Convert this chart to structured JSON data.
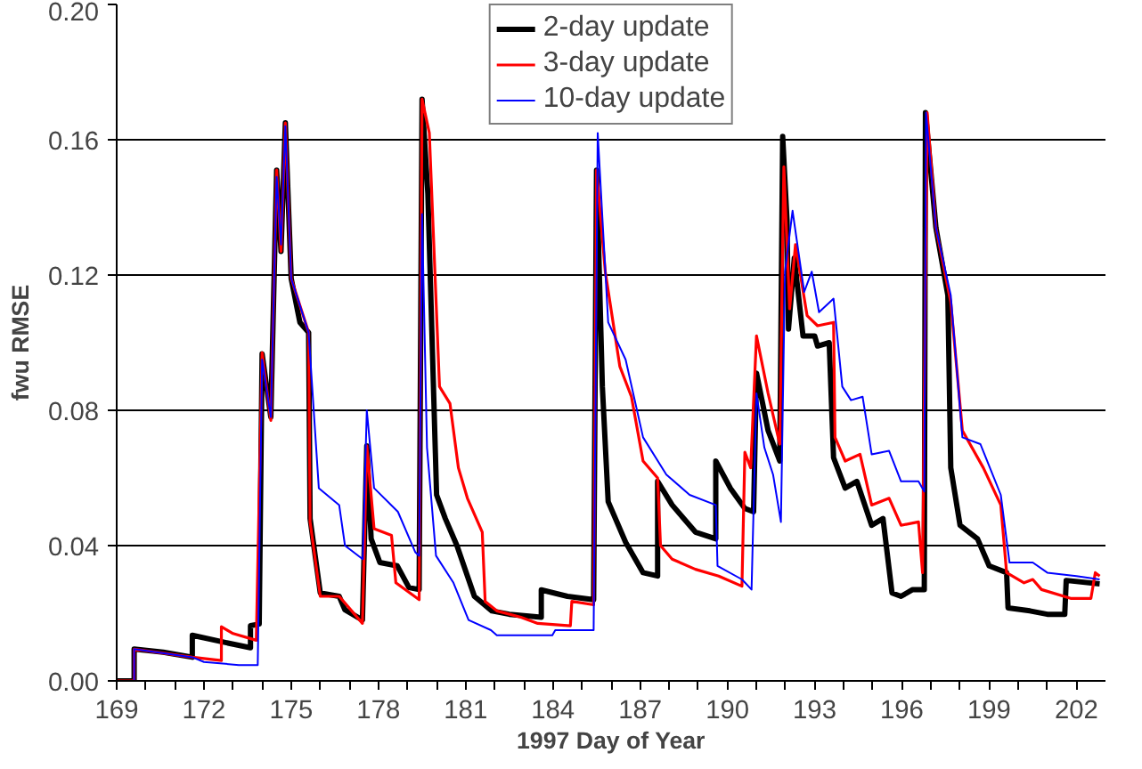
{
  "chart_data": {
    "type": "line",
    "xlabel": "1997 Day of Year",
    "ylabel": "fwu RMSE",
    "xlim": [
      169,
      203
    ],
    "ylim": [
      0,
      0.2
    ],
    "xticks": [
      169,
      {
        "value": 170,
        "label": null
      },
      {
        "value": 171,
        "label": null
      },
      172,
      {
        "value": 173,
        "label": null
      },
      {
        "value": 174,
        "label": null
      },
      175,
      {
        "value": 176,
        "label": null
      },
      {
        "value": 177,
        "label": null
      },
      178,
      {
        "value": 179,
        "label": null
      },
      {
        "value": 180,
        "label": null
      },
      181,
      {
        "value": 182,
        "label": null
      },
      {
        "value": 183,
        "label": null
      },
      184,
      {
        "value": 185,
        "label": null
      },
      {
        "value": 186,
        "label": null
      },
      187,
      {
        "value": 188,
        "label": null
      },
      {
        "value": 189,
        "label": null
      },
      190,
      {
        "value": 191,
        "label": null
      },
      {
        "value": 192,
        "label": null
      },
      193,
      {
        "value": 194,
        "label": null
      },
      {
        "value": 195,
        "label": null
      },
      196,
      {
        "value": 197,
        "label": null
      },
      {
        "value": 198,
        "label": null
      },
      199,
      {
        "value": 200,
        "label": null
      },
      {
        "value": 201,
        "label": null
      },
      202
    ],
    "yticks": [
      {
        "value": 0,
        "label": "0.00"
      },
      {
        "value": 0.04,
        "label": "0.04"
      },
      {
        "value": 0.08,
        "label": "0.08"
      },
      {
        "value": 0.12,
        "label": "0.12"
      },
      {
        "value": 0.16,
        "label": "0.16"
      },
      {
        "value": 0.2,
        "label": "0.20"
      }
    ],
    "grid": "y",
    "legend": "top",
    "line_style": "solid",
    "marker": "none",
    "series": [
      {
        "name": "2-day update",
        "color": "#000000",
        "x": [
          169.0,
          169.6,
          169.6,
          170.6,
          171.6,
          171.6,
          172.6,
          173.6,
          173.6,
          173.9,
          174.0,
          174.3,
          174.5,
          174.65,
          174.8,
          175.0,
          175.3,
          175.6,
          175.65,
          176.0,
          176.65,
          176.85,
          177.45,
          177.6,
          177.75,
          178.05,
          178.65,
          179.05,
          179.4,
          179.5,
          179.7,
          180.0,
          180.3,
          180.7,
          181.1,
          181.3,
          181.9,
          182.5,
          183.6,
          183.6,
          184.5,
          185.4,
          185.5,
          185.7,
          185.9,
          186.5,
          187.1,
          187.6,
          187.6,
          188.1,
          188.9,
          189.6,
          189.6,
          190.1,
          190.6,
          190.9,
          191.0,
          191.4,
          191.8,
          191.9,
          192.05,
          192.1,
          192.3,
          192.6,
          193.0,
          193.1,
          193.5,
          193.65,
          194.05,
          194.45,
          194.96,
          195.35,
          195.66,
          195.97,
          196.37,
          196.77,
          196.81,
          197.17,
          197.58,
          197.68,
          198.0,
          198.6,
          199.0,
          199.6,
          199.65,
          200.4,
          201.0,
          201.6,
          201.65,
          202.8
        ],
        "values": [
          0,
          0,
          0.0094,
          0.0085,
          0.007,
          0.0135,
          0.0116,
          0.0098,
          0.0163,
          0.0168,
          0.0967,
          0.078,
          0.151,
          0.127,
          0.165,
          0.119,
          0.106,
          0.103,
          0.048,
          0.026,
          0.025,
          0.021,
          0.018,
          0.0695,
          0.042,
          0.035,
          0.034,
          0.0276,
          0.027,
          0.172,
          0.144,
          0.055,
          0.048,
          0.04,
          0.03,
          0.025,
          0.0207,
          0.0197,
          0.0188,
          0.0269,
          0.025,
          0.024,
          0.151,
          0.087,
          0.053,
          0.041,
          0.032,
          0.031,
          0.059,
          0.052,
          0.044,
          0.042,
          0.065,
          0.057,
          0.051,
          0.05,
          0.091,
          0.074,
          0.065,
          0.161,
          0.136,
          0.104,
          0.125,
          0.102,
          0.102,
          0.099,
          0.1,
          0.066,
          0.057,
          0.059,
          0.046,
          0.048,
          0.026,
          0.025,
          0.027,
          0.027,
          0.168,
          0.134,
          0.114,
          0.063,
          0.046,
          0.042,
          0.034,
          0.032,
          0.0216,
          0.0207,
          0.0197,
          0.0197,
          0.0297,
          0.0287
        ]
      },
      {
        "name": "3-day update",
        "color": "#ff0000",
        "x": [
          169.0,
          169.6,
          169.6,
          171.6,
          172.6,
          172.6,
          173.0,
          173.8,
          174.0,
          174.3,
          174.5,
          174.65,
          174.8,
          175.0,
          175.6,
          175.65,
          176.0,
          176.65,
          177.45,
          177.6,
          177.85,
          178.45,
          178.6,
          179.4,
          179.5,
          179.75,
          180.1,
          180.46,
          180.75,
          181.06,
          181.57,
          181.67,
          182.07,
          182.9,
          183.48,
          184.6,
          184.65,
          185.4,
          185.5,
          185.8,
          186.3,
          186.7,
          187.1,
          187.6,
          187.7,
          188.1,
          188.9,
          189.7,
          190.5,
          190.6,
          190.8,
          191.0,
          191.4,
          191.8,
          191.94,
          192.14,
          192.34,
          192.74,
          193.1,
          193.65,
          193.7,
          194.05,
          194.56,
          194.96,
          195.56,
          195.97,
          196.57,
          196.71,
          196.87,
          197.17,
          197.68,
          198.08,
          198.8,
          199.4,
          199.6,
          200.2,
          200.5,
          200.8,
          201.8,
          202.5,
          202.65,
          202.8
        ],
        "values": [
          0,
          0,
          0.0094,
          0.007,
          0.006,
          0.016,
          0.014,
          0.012,
          0.097,
          0.077,
          0.151,
          0.127,
          0.165,
          0.119,
          0.103,
          0.047,
          0.025,
          0.025,
          0.017,
          0.0695,
          0.045,
          0.043,
          0.029,
          0.024,
          0.172,
          0.162,
          0.087,
          0.082,
          0.063,
          0.054,
          0.044,
          0.0235,
          0.0207,
          0.0188,
          0.017,
          0.0163,
          0.0235,
          0.0225,
          0.151,
          0.121,
          0.093,
          0.084,
          0.065,
          0.06,
          0.04,
          0.036,
          0.033,
          0.031,
          0.028,
          0.0676,
          0.063,
          0.102,
          0.085,
          0.07,
          0.152,
          0.11,
          0.129,
          0.108,
          0.105,
          0.106,
          0.072,
          0.065,
          0.067,
          0.052,
          0.054,
          0.046,
          0.047,
          0.032,
          0.168,
          0.134,
          0.112,
          0.074,
          0.063,
          0.052,
          0.032,
          0.029,
          0.03,
          0.027,
          0.0244,
          0.0244,
          0.032,
          0.031
        ]
      },
      {
        "name": "10-day update",
        "color": "#0000ff",
        "x": [
          169.0,
          169.6,
          169.6,
          171.6,
          172.0,
          173.2,
          173.85,
          174.0,
          174.3,
          174.5,
          174.65,
          174.8,
          175.0,
          175.6,
          175.95,
          176.65,
          176.85,
          177.46,
          177.6,
          177.85,
          178.67,
          179.27,
          179.4,
          179.5,
          179.67,
          179.98,
          180.58,
          181.1,
          181.87,
          182.07,
          183.98,
          184.08,
          185.4,
          185.54,
          185.9,
          186.5,
          187.1,
          187.9,
          188.7,
          189.6,
          189.66,
          190.5,
          190.83,
          191.0,
          191.27,
          191.57,
          191.84,
          191.98,
          192.24,
          192.64,
          192.9,
          193.15,
          193.65,
          193.95,
          194.25,
          194.65,
          194.96,
          195.56,
          195.97,
          196.57,
          196.77,
          196.83,
          197.17,
          197.68,
          198.08,
          198.7,
          199.4,
          199.7,
          200.5,
          201.0,
          202.0,
          202.8
        ],
        "values": [
          0,
          0,
          0.0094,
          0.007,
          0.0056,
          0.0047,
          0.0047,
          0.095,
          0.078,
          0.149,
          0.129,
          0.164,
          0.119,
          0.103,
          0.057,
          0.052,
          0.04,
          0.036,
          0.08,
          0.057,
          0.05,
          0.038,
          0.037,
          0.138,
          0.069,
          0.037,
          0.029,
          0.018,
          0.015,
          0.0135,
          0.0135,
          0.015,
          0.015,
          0.162,
          0.106,
          0.095,
          0.072,
          0.061,
          0.055,
          0.052,
          0.034,
          0.03,
          0.027,
          0.085,
          0.069,
          0.061,
          0.047,
          0.121,
          0.139,
          0.115,
          0.121,
          0.109,
          0.113,
          0.087,
          0.083,
          0.084,
          0.067,
          0.068,
          0.059,
          0.059,
          0.056,
          0.168,
          0.134,
          0.114,
          0.072,
          0.07,
          0.055,
          0.035,
          0.035,
          0.032,
          0.031,
          0.03
        ]
      }
    ]
  }
}
